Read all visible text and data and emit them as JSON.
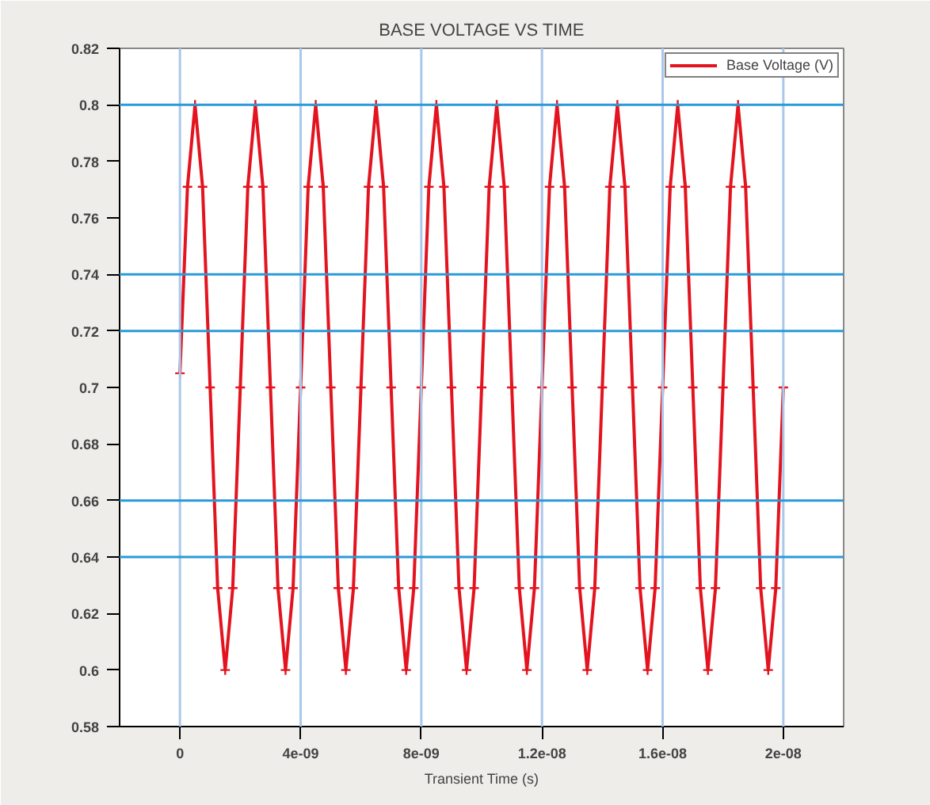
{
  "chart_data": {
    "type": "line",
    "title": "BASE VOLTAGE VS TIME",
    "xlabel": "Transient Time (s)",
    "x": [
      0,
      2.5e-10,
      5e-10,
      7.5e-10,
      1e-09,
      1.25e-09,
      1.5e-09,
      1.75e-09,
      2e-09,
      2.25e-09,
      2.5e-09,
      2.75e-09,
      3e-09,
      3.25e-09,
      3.5e-09,
      3.75e-09,
      4e-09,
      4.25e-09,
      4.5e-09,
      4.75e-09,
      5e-09,
      5.25e-09,
      5.5e-09,
      5.75e-09,
      6e-09,
      6.25e-09,
      6.5e-09,
      6.75e-09,
      7e-09,
      7.25e-09,
      7.5e-09,
      7.75e-09,
      8e-09,
      8.25e-09,
      8.5e-09,
      8.75e-09,
      9e-09,
      9.25e-09,
      9.5e-09,
      9.75e-09,
      1e-08,
      1.025e-08,
      1.05e-08,
      1.075e-08,
      1.1e-08,
      1.125e-08,
      1.15e-08,
      1.175e-08,
      1.2e-08,
      1.225e-08,
      1.25e-08,
      1.275e-08,
      1.3e-08,
      1.325e-08,
      1.35e-08,
      1.375e-08,
      1.4e-08,
      1.425e-08,
      1.45e-08,
      1.475e-08,
      1.5e-08,
      1.525e-08,
      1.55e-08,
      1.575e-08,
      1.6e-08,
      1.625e-08,
      1.65e-08,
      1.675e-08,
      1.7e-08,
      1.725e-08,
      1.75e-08,
      1.775e-08,
      1.8e-08,
      1.825e-08,
      1.85e-08,
      1.875e-08,
      1.9e-08,
      1.925e-08,
      1.95e-08,
      1.975e-08,
      2e-08
    ],
    "series": [
      {
        "name": "Base Voltage (V)",
        "color": "#e3141f",
        "values": [
          0.705,
          0.771,
          0.8,
          0.771,
          0.7,
          0.629,
          0.6,
          0.629,
          0.7,
          0.771,
          0.8,
          0.771,
          0.7,
          0.629,
          0.6,
          0.629,
          0.7,
          0.771,
          0.8,
          0.771,
          0.7,
          0.629,
          0.6,
          0.629,
          0.7,
          0.771,
          0.8,
          0.771,
          0.7,
          0.629,
          0.6,
          0.629,
          0.7,
          0.771,
          0.8,
          0.771,
          0.7,
          0.629,
          0.6,
          0.629,
          0.7,
          0.771,
          0.8,
          0.771,
          0.7,
          0.629,
          0.6,
          0.629,
          0.7,
          0.771,
          0.8,
          0.771,
          0.7,
          0.629,
          0.6,
          0.629,
          0.7,
          0.771,
          0.8,
          0.771,
          0.7,
          0.629,
          0.6,
          0.629,
          0.7,
          0.771,
          0.8,
          0.771,
          0.7,
          0.629,
          0.6,
          0.629,
          0.7,
          0.771,
          0.8,
          0.771,
          0.7,
          0.629,
          0.6,
          0.629,
          0.7
        ]
      }
    ],
    "xlim": [
      -2e-09,
      2.2e-08
    ],
    "xticks": [
      0,
      {
        "value": 4e-09,
        "label": "4e-09"
      },
      {
        "value": 8e-09,
        "label": "8e-09"
      },
      {
        "value": 1.2e-08,
        "label": "1.2e-08"
      },
      {
        "value": 1.6e-08,
        "label": "1.6e-08"
      },
      {
        "value": 2e-08,
        "label": "2e-08"
      }
    ],
    "ylim": [
      0.58,
      0.82
    ],
    "yticks": [
      0.58,
      {
        "value": 0.6,
        "label": "0.6"
      },
      0.62,
      0.64,
      0.66,
      0.68,
      {
        "value": 0.7,
        "label": "0.7"
      },
      0.72,
      0.74,
      0.76,
      0.78,
      {
        "value": 0.8,
        "label": "0.8"
      },
      0.82
    ],
    "ref_lines": [
      {
        "axis": "x",
        "value": 0,
        "color": "#a9c8ea"
      },
      {
        "axis": "x",
        "value": 4e-09,
        "color": "#a9c8ea"
      },
      {
        "axis": "x",
        "value": 8e-09,
        "color": "#a9c8ea"
      },
      {
        "axis": "x",
        "value": 1.2e-08,
        "color": "#a9c8ea"
      },
      {
        "axis": "x",
        "value": 1.6e-08,
        "color": "#a9c8ea"
      },
      {
        "axis": "x",
        "value": 2e-08,
        "color": "#a9c8ea"
      },
      {
        "axis": "y",
        "value": 0.8,
        "color": "#2a9ad8"
      },
      {
        "axis": "y",
        "value": 0.74,
        "color": "#2a9ad8"
      },
      {
        "axis": "y",
        "value": 0.72,
        "color": "#2a9ad8"
      },
      {
        "axis": "y",
        "value": 0.66,
        "color": "#2a9ad8"
      },
      {
        "axis": "y",
        "value": 0.64,
        "color": "#2a9ad8"
      }
    ],
    "legend": "top right",
    "marker": "cross",
    "line_style": "solid"
  }
}
